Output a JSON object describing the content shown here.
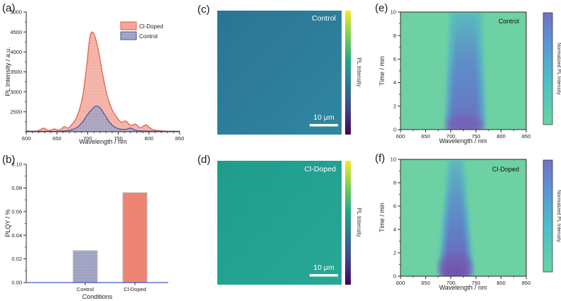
{
  "chart_data": [
    {
      "id": "a",
      "panel_label": "(a)",
      "type": "area",
      "xlabel": "Wavelength / nm",
      "ylabel": "PL Intensity / a.u.",
      "xlim": [
        600,
        850
      ],
      "ylim": [
        2000,
        5000
      ],
      "x_ticks": [
        600,
        650,
        700,
        750,
        800,
        850
      ],
      "y_ticks": [
        2500,
        3000,
        3500,
        4000,
        4500,
        5000
      ],
      "legend_position": "top-right",
      "series": [
        {
          "name": "Cl-Doped",
          "fill": "#f3a99c",
          "stroke": "#e05a44",
          "x": [
            600,
            618,
            628,
            636,
            646,
            654,
            662,
            668,
            674,
            680,
            686,
            692,
            698,
            703,
            707,
            712,
            718,
            725,
            732,
            740,
            748,
            755,
            762,
            770,
            778,
            786,
            795,
            805,
            815,
            830,
            850
          ],
          "y": [
            2020,
            2020,
            2090,
            2030,
            2070,
            2040,
            2130,
            2090,
            2180,
            2300,
            2520,
            2900,
            3600,
            4300,
            4500,
            4380,
            4000,
            3400,
            2900,
            2550,
            2350,
            2240,
            2270,
            2160,
            2190,
            2100,
            2170,
            2060,
            2030,
            2015,
            2010
          ]
        },
        {
          "name": "Control",
          "fill": "#a5a7c6",
          "stroke": "#44549b",
          "x": [
            600,
            650,
            668,
            676,
            684,
            692,
            700,
            707,
            713,
            720,
            728,
            736,
            744,
            752,
            762,
            770,
            780,
            800,
            850
          ],
          "y": [
            2010,
            2010,
            2030,
            2060,
            2120,
            2250,
            2430,
            2560,
            2640,
            2600,
            2420,
            2230,
            2120,
            2070,
            2060,
            2090,
            2030,
            2015,
            2010
          ]
        }
      ],
      "peak_summary": {
        "cl_doped_peak_nm": 707,
        "cl_doped_peak_intensity": 4500,
        "control_peak_nm": 713,
        "control_peak_intensity": 2640
      }
    },
    {
      "id": "b",
      "panel_label": "(b)",
      "type": "bar",
      "xlabel": "Conditions",
      "ylabel": "PLQY / %",
      "categories": [
        "Control",
        "Cl-Doped"
      ],
      "values": [
        0.027,
        0.076
      ],
      "bar_colors": [
        "#a5a7c6",
        "#ee8673"
      ],
      "ylim": [
        0,
        0.1
      ],
      "y_ticks": [
        "0.00",
        "0.02",
        "0.04",
        "0.06",
        "0.08",
        "0.10"
      ]
    },
    {
      "id": "c",
      "panel_label": "(c)",
      "type": "image",
      "label": "Control",
      "scalebar": "10 μm",
      "colorbar_label": "PL Intensity",
      "colormap": "viridis",
      "base_color": "#2c7d9b"
    },
    {
      "id": "d",
      "panel_label": "(d)",
      "type": "image",
      "label": "Cl-Doped",
      "scalebar": "10 μm",
      "colorbar_label": "PL Intensity",
      "colormap": "viridis",
      "base_color": "#23a192"
    },
    {
      "id": "e",
      "panel_label": "(e)",
      "type": "heatmap",
      "label": "Control",
      "xlabel": "Wavelength / nm",
      "ylabel": "Time / min",
      "colorbar_label": "Normalized PL Intensity",
      "xlim": [
        600,
        850
      ],
      "ylim": [
        0,
        10
      ],
      "x_ticks": [
        600,
        650,
        700,
        750,
        800,
        850
      ],
      "y_ticks": [
        0,
        2,
        4,
        6,
        8,
        10
      ],
      "band": {
        "center_nm": 727,
        "width_nm_bottom": 75,
        "width_nm_top": 60,
        "max_intensity_at_time_min": 0,
        "background_color": "#6ed1a3",
        "band_color": "#52b0d8",
        "core_color": "#6c6ec6"
      }
    },
    {
      "id": "f",
      "panel_label": "(f)",
      "type": "heatmap",
      "label": "Cl-Doped",
      "xlabel": "Wavelength / nm",
      "ylabel": "Time / min",
      "colorbar_label": "Normalized PL Intensity",
      "xlim": [
        600,
        850
      ],
      "ylim": [
        0,
        10
      ],
      "x_ticks": [
        600,
        650,
        700,
        750,
        800,
        850
      ],
      "y_ticks": [
        0,
        2,
        4,
        6,
        8,
        10
      ],
      "band": {
        "center_nm": 708,
        "width_nm_bottom": 62,
        "width_nm_top": 28,
        "max_intensity_at_time_min": 0,
        "background_color": "#6ed1a3",
        "band_color": "#52b0d8",
        "core_color": "#6c6ec6"
      }
    }
  ]
}
